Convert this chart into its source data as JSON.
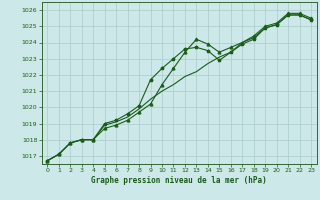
{
  "title": "Graphe pression niveau de la mer (hPa)",
  "bg_color": "#cce8e8",
  "grid_color": "#aacccc",
  "line_color": "#1a5c1a",
  "spine_color": "#336633",
  "xlim": [
    -0.5,
    23.5
  ],
  "ylim": [
    1016.5,
    1026.5
  ],
  "yticks": [
    1017,
    1018,
    1019,
    1020,
    1021,
    1022,
    1023,
    1024,
    1025,
    1026
  ],
  "xticks": [
    0,
    1,
    2,
    3,
    4,
    5,
    6,
    7,
    8,
    9,
    10,
    11,
    12,
    13,
    14,
    15,
    16,
    17,
    18,
    19,
    20,
    21,
    22,
    23
  ],
  "line1_x": [
    0,
    1,
    2,
    3,
    4,
    5,
    6,
    7,
    8,
    9,
    10,
    11,
    12,
    13,
    14,
    15,
    16,
    17,
    18,
    19,
    20,
    21,
    22,
    23
  ],
  "line1_y": [
    1016.7,
    1017.1,
    1017.8,
    1018.0,
    1018.0,
    1018.9,
    1019.1,
    1019.4,
    1019.9,
    1020.5,
    1021.0,
    1021.4,
    1021.9,
    1022.2,
    1022.7,
    1023.1,
    1023.4,
    1024.0,
    1024.3,
    1024.9,
    1025.1,
    1025.7,
    1025.7,
    1025.4
  ],
  "line2_x": [
    0,
    1,
    2,
    3,
    4,
    5,
    6,
    7,
    8,
    9,
    10,
    11,
    12,
    13,
    14,
    15,
    16,
    17,
    18,
    19,
    20,
    21,
    22,
    23
  ],
  "line2_y": [
    1016.7,
    1017.1,
    1017.8,
    1018.0,
    1018.0,
    1019.0,
    1019.2,
    1019.6,
    1020.1,
    1021.7,
    1022.4,
    1023.0,
    1023.6,
    1023.7,
    1023.5,
    1022.9,
    1023.4,
    1023.9,
    1024.2,
    1024.9,
    1025.1,
    1025.7,
    1025.7,
    1025.4
  ],
  "line3_x": [
    0,
    1,
    2,
    3,
    4,
    5,
    6,
    7,
    8,
    9,
    10,
    11,
    12,
    13,
    14,
    15,
    16,
    17,
    18,
    19,
    20,
    21,
    22,
    23
  ],
  "line3_y": [
    1016.7,
    1017.1,
    1017.8,
    1018.0,
    1018.0,
    1018.7,
    1018.9,
    1019.2,
    1019.7,
    1020.2,
    1021.4,
    1022.4,
    1023.4,
    1024.2,
    1023.9,
    1023.4,
    1023.7,
    1024.0,
    1024.4,
    1025.0,
    1025.2,
    1025.8,
    1025.8,
    1025.5
  ]
}
